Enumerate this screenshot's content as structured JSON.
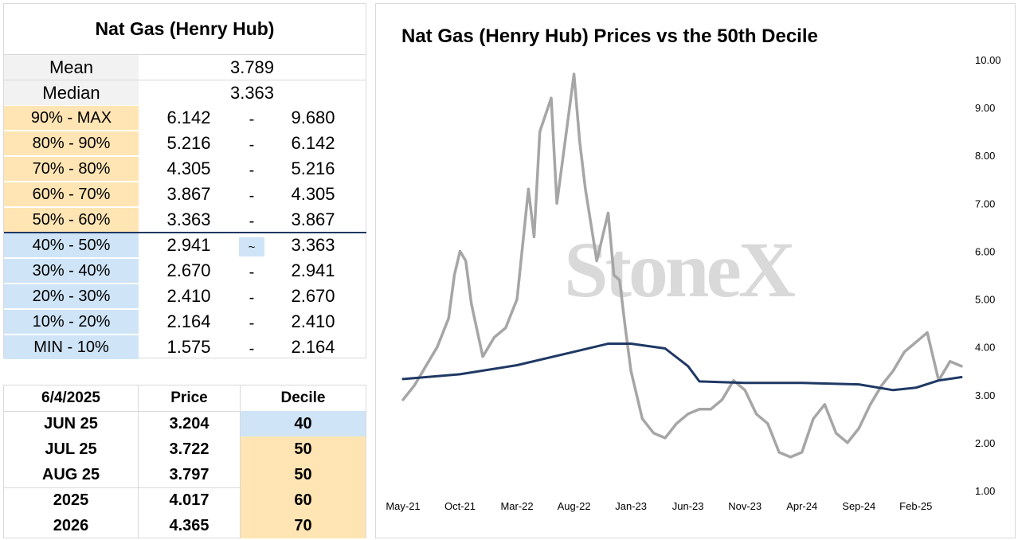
{
  "left_table": {
    "title": "Nat Gas (Henry Hub)",
    "mean_label": "Mean",
    "mean_value": "3.789",
    "median_label": "Median",
    "median_value": "3.363",
    "deciles": [
      {
        "label": "90% - MAX",
        "low": "6.142",
        "sep": "-",
        "high": "9.680",
        "band": "high"
      },
      {
        "label": "80% - 90%",
        "low": "5.216",
        "sep": "-",
        "high": "6.142",
        "band": "high"
      },
      {
        "label": "70% - 80%",
        "low": "4.305",
        "sep": "-",
        "high": "5.216",
        "band": "high"
      },
      {
        "label": "60% - 70%",
        "low": "3.867",
        "sep": "-",
        "high": "4.305",
        "band": "high"
      },
      {
        "label": "50% - 60%",
        "low": "3.363",
        "sep": "-",
        "high": "3.867",
        "band": "high"
      },
      {
        "label": "40% - 50%",
        "low": "2.941",
        "sep": "~",
        "high": "3.363",
        "band": "low",
        "current": true
      },
      {
        "label": "30% - 40%",
        "low": "2.670",
        "sep": "-",
        "high": "2.941",
        "band": "low"
      },
      {
        "label": "20% - 30%",
        "low": "2.410",
        "sep": "-",
        "high": "2.670",
        "band": "low"
      },
      {
        "label": "10% - 20%",
        "low": "2.164",
        "sep": "-",
        "high": "2.410",
        "band": "low"
      },
      {
        "label": "MIN - 10%",
        "low": "1.575",
        "sep": "-",
        "high": "2.164",
        "band": "low"
      }
    ]
  },
  "price_table": {
    "headers": [
      "6/4/2025",
      "Price",
      "Decile"
    ],
    "rows": [
      {
        "contract": "JUN 25",
        "price": "3.204",
        "decile": "40",
        "band": "low"
      },
      {
        "contract": "JUL 25",
        "price": "3.722",
        "decile": "50",
        "band": "high"
      },
      {
        "contract": "AUG 25",
        "price": "3.797",
        "decile": "50",
        "band": "high"
      },
      {
        "contract": "2025",
        "price": "4.017",
        "decile": "60",
        "band": "high"
      },
      {
        "contract": "2026",
        "price": "4.365",
        "decile": "70",
        "band": "high"
      }
    ]
  },
  "colors": {
    "high_band": "#ffe5b3",
    "low_band": "#cfe4f7",
    "price_line": "#a6a6a6",
    "median_line": "#1f3864",
    "watermark": "#d9d9d9"
  },
  "watermark": "StoneX",
  "chart_data": {
    "type": "line",
    "title": "Nat Gas (Henry Hub) Prices vs the 50th Decile",
    "xlabel": "",
    "ylabel": "",
    "x_ticks": [
      "May-21",
      "Oct-21",
      "Mar-22",
      "Aug-22",
      "Jan-23",
      "Jun-23",
      "Nov-23",
      "Apr-24",
      "Sep-24",
      "Feb-25"
    ],
    "y_ticks": [
      "1.00",
      "2.00",
      "3.00",
      "4.00",
      "5.00",
      "6.00",
      "7.00",
      "8.00",
      "9.00",
      "10.00"
    ],
    "ylim": [
      1,
      10
    ],
    "xlim": [
      "2021-05",
      "2025-06"
    ],
    "y_axis_side": "right",
    "grid": false,
    "legend": "none",
    "series": [
      {
        "x": [
          "2021-05",
          "2021-06",
          "2021-07",
          "2021-08",
          "2021-09",
          "2021-09b",
          "2021-10",
          "2021-10b",
          "2021-11",
          "2021-12",
          "2022-01",
          "2022-02",
          "2022-03",
          "2022-04",
          "2022-04b",
          "2022-05",
          "2022-06",
          "2022-06b",
          "2022-07",
          "2022-08",
          "2022-08b",
          "2022-09",
          "2022-10",
          "2022-11",
          "2022-11b",
          "2022-12",
          "2022-12b",
          "2023-01",
          "2023-02",
          "2023-03",
          "2023-04",
          "2023-05",
          "2023-06",
          "2023-07",
          "2023-08",
          "2023-09",
          "2023-10",
          "2023-11",
          "2023-12",
          "2024-01",
          "2024-02",
          "2024-03",
          "2024-04",
          "2024-05",
          "2024-06",
          "2024-07",
          "2024-08",
          "2024-09",
          "2024-10",
          "2024-11",
          "2024-12",
          "2025-01",
          "2025-02",
          "2025-03",
          "2025-04",
          "2025-05",
          "2025-06"
        ],
        "values": [
          2.9,
          3.2,
          3.6,
          4.0,
          4.6,
          5.5,
          6.0,
          5.8,
          4.9,
          3.8,
          4.2,
          4.4,
          5.0,
          7.3,
          6.3,
          8.5,
          9.2,
          7.0,
          7.9,
          9.7,
          8.3,
          7.3,
          5.8,
          6.8,
          5.5,
          5.4,
          4.4,
          3.5,
          2.5,
          2.2,
          2.1,
          2.4,
          2.6,
          2.7,
          2.7,
          2.9,
          3.3,
          3.1,
          2.6,
          2.4,
          1.8,
          1.7,
          1.8,
          2.5,
          2.8,
          2.2,
          2.0,
          2.3,
          2.8,
          3.2,
          3.5,
          3.9,
          4.1,
          4.3,
          3.3,
          3.7,
          3.6
        ]
      },
      {
        "x": [
          "2021-05",
          "2021-10",
          "2022-03",
          "2022-08",
          "2022-11",
          "2023-01",
          "2023-04",
          "2023-06",
          "2023-07",
          "2023-11",
          "2024-04",
          "2024-09",
          "2024-12",
          "2025-02",
          "2025-04",
          "2025-06"
        ],
        "values": [
          3.33,
          3.43,
          3.62,
          3.9,
          4.07,
          4.07,
          3.97,
          3.6,
          3.28,
          3.25,
          3.25,
          3.22,
          3.1,
          3.15,
          3.3,
          3.37
        ]
      }
    ]
  }
}
